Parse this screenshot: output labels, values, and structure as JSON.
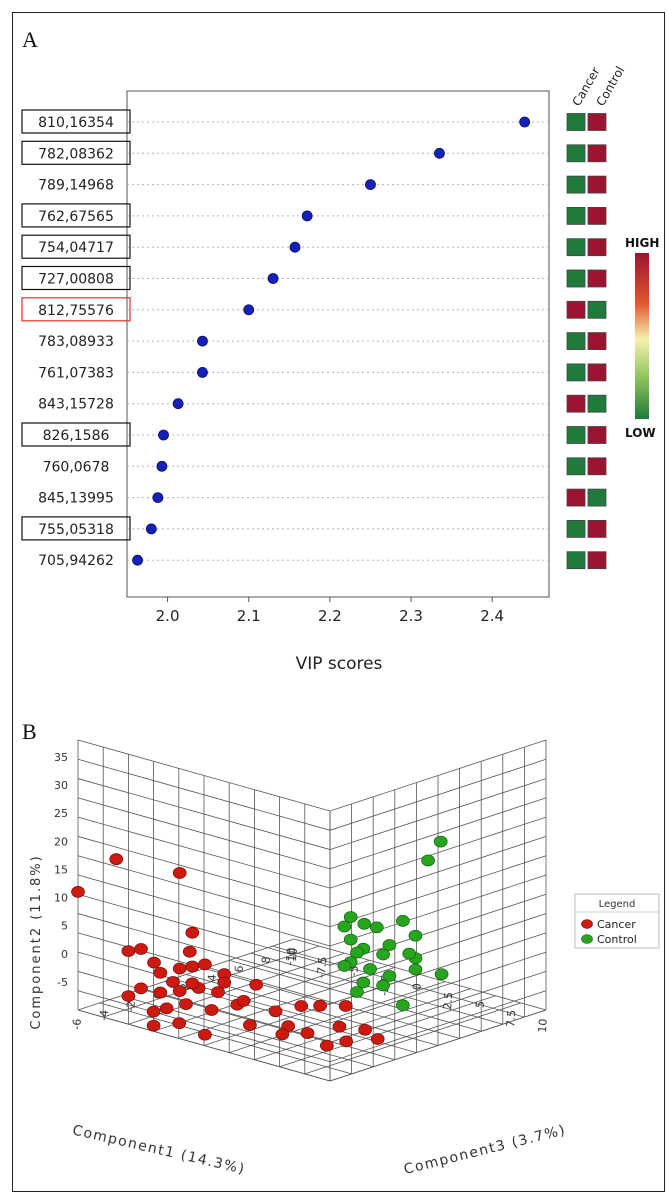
{
  "panels": {
    "a_label": "A",
    "b_label": "B"
  },
  "chart_data": [
    {
      "type": "scatter",
      "xlabel": "VIP scores",
      "xlim": [
        1.95,
        2.47
      ],
      "xticks": [
        "2.0",
        "2.1",
        "2.2",
        "2.3",
        "2.4"
      ],
      "xtick_values": [
        2.0,
        2.1,
        2.2,
        2.3,
        2.4
      ],
      "categories": [
        "810,16354",
        "782,08362",
        "789,14968",
        "762,67565",
        "754,04717",
        "727,00808",
        "812,75576",
        "783,08933",
        "761,07383",
        "843,15728",
        "826,1586",
        "760,0678",
        "845,13995",
        "755,05318",
        "705,94262"
      ],
      "boxed": [
        true,
        true,
        false,
        true,
        true,
        true,
        true,
        false,
        false,
        false,
        true,
        false,
        false,
        true,
        false
      ],
      "box_colors": [
        "#111111",
        "#111111",
        "",
        "#111111",
        "#111111",
        "#111111",
        "#e03030",
        "",
        "",
        "",
        "#111111",
        "",
        "",
        "#111111",
        ""
      ],
      "values": [
        2.44,
        2.335,
        2.25,
        2.172,
        2.157,
        2.13,
        2.1,
        2.043,
        2.043,
        2.013,
        1.995,
        1.993,
        1.988,
        1.98,
        1.963
      ],
      "heat_columns": [
        "Cancer",
        "Control"
      ],
      "heat_levels": [
        [
          "low",
          "high"
        ],
        [
          "low",
          "high"
        ],
        [
          "low",
          "high"
        ],
        [
          "low",
          "high"
        ],
        [
          "low",
          "high"
        ],
        [
          "low",
          "high"
        ],
        [
          "high",
          "low"
        ],
        [
          "low",
          "high"
        ],
        [
          "low",
          "high"
        ],
        [
          "high",
          "low"
        ],
        [
          "low",
          "high"
        ],
        [
          "low",
          "high"
        ],
        [
          "high",
          "low"
        ],
        [
          "low",
          "high"
        ],
        [
          "low",
          "high"
        ]
      ],
      "scale_labels": {
        "high": "HIGH",
        "low": "LOW"
      },
      "colors": {
        "point": "#1520b8",
        "high": "#9b1530",
        "low": "#1f7a3c"
      }
    },
    {
      "type": "scatter3d",
      "ylabel": "Component2 (11.8%)",
      "xlabel": "Component1 (14.3%)",
      "zlabel": "Component3 (3.7%)",
      "yticks": [
        "35",
        "30",
        "25",
        "20",
        "15",
        "10",
        "5",
        "0",
        "-5"
      ],
      "xticks": [
        "-10",
        "-7.5",
        "-5",
        "-2.5",
        "0",
        "2.5",
        "5",
        "7.5",
        "10"
      ],
      "zticks": [
        "-6",
        "-4",
        "-2",
        "0",
        "2",
        "4",
        "6",
        "8",
        "10"
      ],
      "legend_title": "Legend",
      "series": [
        {
          "name": "Cancer",
          "color": "#cc1a10",
          "x": [
            -10,
            -7.5,
            -3,
            -2,
            -2.2,
            -5,
            -6,
            -4.5,
            -4,
            -3,
            -2,
            -1,
            0,
            2,
            -3,
            -1.5,
            -3,
            -4,
            -0.5,
            -2.5,
            -1,
            0.5,
            1,
            -6,
            -4,
            -2.5,
            -3.5,
            -5,
            -2,
            0,
            -4,
            1.5,
            -1,
            3,
            4.5,
            6,
            7.5,
            4,
            5,
            7,
            8.5,
            7,
            9.5,
            3,
            6
          ],
          "y": [
            11,
            18,
            18,
            8,
            4.5,
            4,
            3,
            1.5,
            0,
            1,
            2,
            3,
            1.5,
            0.5,
            -1,
            -1.5,
            -3,
            -3.5,
            -2,
            -5,
            -5.5,
            -4,
            -3,
            -5,
            -6.5,
            -8,
            -6,
            -3,
            -1,
            0,
            -9,
            -7,
            -9.5,
            -4,
            -2.5,
            -1.5,
            -1,
            -6,
            -7,
            -5,
            -5,
            -8,
            -6,
            -8.5,
            -9
          ],
          "z": [
            -6,
            -5.5,
            -5,
            -5,
            -5,
            -6,
            -6,
            -5.5,
            -5.5,
            -5,
            -5,
            -5,
            -4.5,
            -4,
            -5.5,
            -5,
            -5,
            -5.5,
            -4.5,
            -5,
            -4.5,
            -4,
            -4,
            -6,
            -6,
            -5.5,
            -5.5,
            -6,
            -5,
            -4.5,
            -6,
            -4,
            -5,
            -3.5,
            -3,
            -3,
            -2.5,
            -3.5,
            -3,
            -2.5,
            -2,
            -2,
            -2,
            -3,
            -2.5
          ]
        },
        {
          "name": "Control",
          "color": "#27a51f",
          "x": [
            7,
            6,
            2,
            1.5,
            2,
            3,
            4,
            5,
            2,
            3,
            4,
            2.5,
            3.5,
            5,
            2,
            1.5,
            3,
            4,
            5,
            4.5,
            3,
            3.5,
            2.5,
            6,
            4
          ],
          "y": [
            22,
            18,
            7,
            5,
            5,
            5,
            6,
            4,
            3,
            2,
            2.5,
            1,
            0.5,
            0,
            -1,
            -2,
            -2,
            -3,
            -2,
            0.5,
            -4,
            -5,
            -6,
            -3,
            -9
          ],
          "z": [
            5,
            5,
            3,
            3,
            4,
            4,
            5,
            5,
            3,
            3,
            4,
            3,
            4,
            5,
            3,
            3,
            3.5,
            4,
            5,
            5,
            3,
            4,
            3,
            6,
            5
          ]
        }
      ]
    }
  ]
}
